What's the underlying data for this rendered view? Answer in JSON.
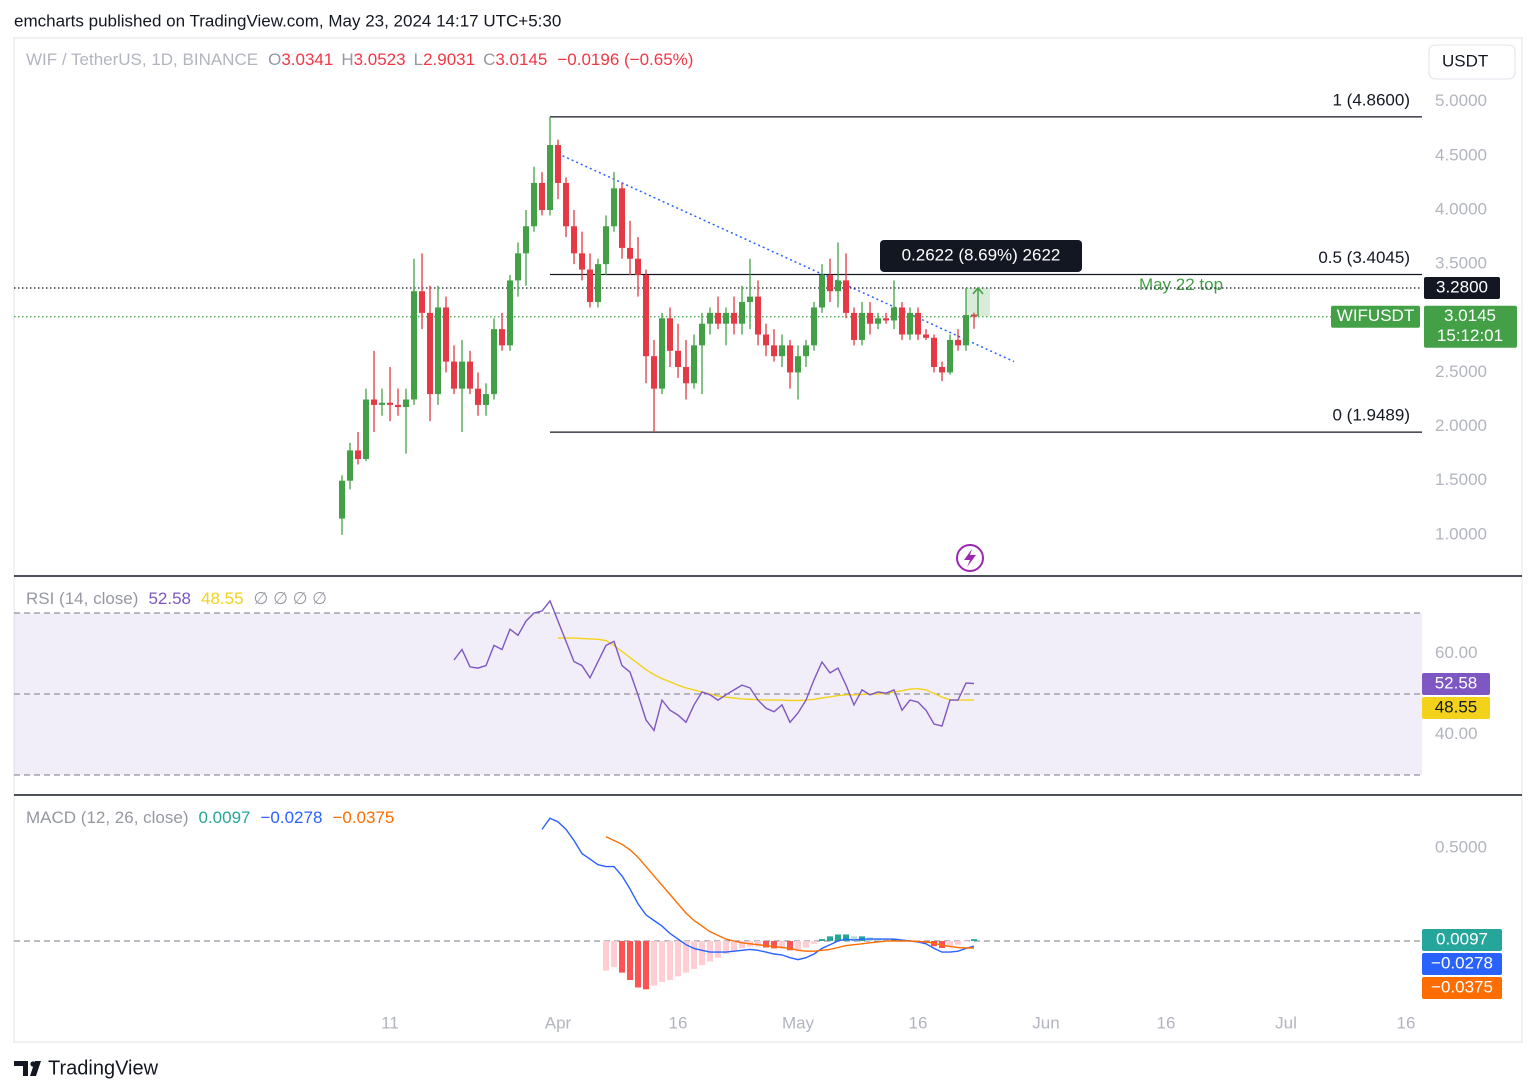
{
  "header": {
    "publisher": "emcharts published on TradingView.com, May 23, 2024 14:17 UTC+5:30"
  },
  "toolbar": {
    "currency": "USDT"
  },
  "footer": {
    "brand": "TradingView"
  },
  "chart_data": [
    {
      "type": "candlestick",
      "title": "WIF / TetherUS, 1D, BINANCE",
      "legend_letters": [
        "O",
        "H",
        "L",
        "C"
      ],
      "change": {
        "value": -0.0196,
        "pct": -0.65,
        "label": "−0.0196 (−0.65%)"
      },
      "up_color": "#43a047",
      "down_color": "#e53945",
      "x": [
        "2024-03-05",
        "2024-03-06",
        "2024-03-07",
        "2024-03-08",
        "2024-03-09",
        "2024-03-10",
        "2024-03-11",
        "2024-03-12",
        "2024-03-13",
        "2024-03-14",
        "2024-03-15",
        "2024-03-16",
        "2024-03-17",
        "2024-03-18",
        "2024-03-19",
        "2024-03-20",
        "2024-03-21",
        "2024-03-22",
        "2024-03-23",
        "2024-03-24",
        "2024-03-25",
        "2024-03-26",
        "2024-03-27",
        "2024-03-28",
        "2024-03-29",
        "2024-03-30",
        "2024-03-31",
        "2024-04-01",
        "2024-04-02",
        "2024-04-03",
        "2024-04-04",
        "2024-04-05",
        "2024-04-06",
        "2024-04-07",
        "2024-04-08",
        "2024-04-09",
        "2024-04-10",
        "2024-04-11",
        "2024-04-12",
        "2024-04-13",
        "2024-04-14",
        "2024-04-15",
        "2024-04-16",
        "2024-04-17",
        "2024-04-18",
        "2024-04-19",
        "2024-04-20",
        "2024-04-21",
        "2024-04-22",
        "2024-04-23",
        "2024-04-24",
        "2024-04-25",
        "2024-04-26",
        "2024-04-27",
        "2024-04-28",
        "2024-04-29",
        "2024-04-30",
        "2024-05-01",
        "2024-05-02",
        "2024-05-03",
        "2024-05-04",
        "2024-05-05",
        "2024-05-06",
        "2024-05-07",
        "2024-05-08",
        "2024-05-09",
        "2024-05-10",
        "2024-05-11",
        "2024-05-12",
        "2024-05-13",
        "2024-05-14",
        "2024-05-15",
        "2024-05-16",
        "2024-05-17",
        "2024-05-18",
        "2024-05-19",
        "2024-05-20",
        "2024-05-21",
        "2024-05-22",
        "2024-05-23"
      ],
      "open": [
        1.15,
        1.5,
        1.78,
        1.7,
        2.25,
        2.2,
        2.22,
        2.2,
        2.18,
        2.25,
        3.25,
        3.05,
        2.3,
        3.1,
        2.6,
        2.35,
        2.6,
        2.35,
        2.2,
        2.3,
        2.9,
        2.75,
        3.35,
        3.6,
        3.85,
        4.25,
        4.0,
        4.6,
        4.25,
        3.85,
        3.6,
        3.45,
        3.15,
        3.5,
        3.85,
        4.2,
        3.65,
        3.55,
        3.4,
        2.65,
        2.35,
        3.0,
        2.7,
        2.55,
        2.4,
        2.75,
        2.95,
        3.05,
        2.95,
        3.05,
        2.95,
        3.15,
        3.2,
        2.85,
        2.75,
        2.65,
        2.75,
        2.5,
        2.65,
        2.75,
        3.1,
        3.4,
        3.25,
        3.35,
        3.05,
        2.8,
        3.05,
        2.95,
        3.0,
        2.98,
        3.1,
        2.85,
        3.05,
        2.85,
        2.82,
        2.55,
        2.5,
        2.8,
        2.75,
        3.0341
      ],
      "high": [
        1.55,
        1.85,
        1.95,
        2.35,
        2.7,
        2.35,
        2.55,
        2.35,
        2.35,
        3.55,
        3.6,
        3.3,
        3.3,
        3.2,
        2.75,
        2.8,
        2.7,
        2.5,
        2.4,
        3.0,
        3.05,
        3.4,
        3.7,
        4.0,
        4.4,
        4.35,
        4.86,
        4.65,
        4.3,
        4.0,
        3.8,
        3.6,
        3.55,
        3.95,
        4.35,
        4.25,
        3.9,
        3.75,
        3.45,
        2.8,
        3.05,
        3.1,
        2.95,
        2.8,
        2.85,
        3.05,
        3.1,
        3.2,
        3.1,
        3.2,
        3.3,
        3.55,
        3.35,
        2.95,
        2.9,
        2.85,
        2.8,
        2.75,
        2.8,
        3.15,
        3.5,
        3.55,
        3.7,
        3.6,
        3.1,
        3.15,
        3.15,
        3.05,
        3.05,
        3.35,
        3.15,
        3.1,
        3.1,
        2.9,
        2.85,
        2.6,
        2.85,
        2.9,
        3.28,
        3.0523
      ],
      "low": [
        1.0,
        1.42,
        1.65,
        1.68,
        1.95,
        2.1,
        2.05,
        2.1,
        1.75,
        2.2,
        2.9,
        2.05,
        2.2,
        2.5,
        2.3,
        1.95,
        2.3,
        2.1,
        2.1,
        2.25,
        2.7,
        2.7,
        3.2,
        3.3,
        3.8,
        3.95,
        3.95,
        4.1,
        3.75,
        3.5,
        3.35,
        3.1,
        3.1,
        3.4,
        3.8,
        3.55,
        3.4,
        3.2,
        2.4,
        1.9489,
        2.3,
        2.55,
        2.45,
        2.25,
        2.35,
        2.3,
        2.85,
        2.9,
        2.75,
        2.85,
        2.85,
        2.9,
        2.75,
        2.65,
        2.6,
        2.55,
        2.35,
        2.25,
        2.55,
        2.7,
        3.05,
        3.15,
        3.1,
        3.0,
        2.75,
        2.75,
        2.85,
        2.9,
        2.95,
        2.9,
        2.8,
        2.8,
        2.8,
        2.8,
        2.5,
        2.42,
        2.48,
        2.7,
        2.7,
        2.9031
      ],
      "close": [
        1.5,
        1.78,
        1.7,
        2.25,
        2.2,
        2.22,
        2.2,
        2.18,
        2.25,
        3.25,
        3.05,
        2.3,
        3.1,
        2.6,
        2.35,
        2.6,
        2.35,
        2.2,
        2.3,
        2.9,
        2.75,
        3.35,
        3.6,
        3.85,
        4.25,
        4.0,
        4.6,
        4.25,
        3.85,
        3.6,
        3.45,
        3.15,
        3.5,
        3.85,
        4.2,
        3.65,
        3.55,
        3.4,
        2.65,
        2.35,
        3.0,
        2.7,
        2.55,
        2.4,
        2.75,
        2.95,
        3.05,
        2.95,
        3.05,
        2.95,
        3.15,
        3.2,
        2.85,
        2.75,
        2.65,
        2.75,
        2.5,
        2.65,
        2.75,
        3.1,
        3.4,
        3.25,
        3.35,
        3.05,
        2.8,
        3.05,
        2.95,
        3.0,
        2.98,
        3.1,
        2.85,
        3.05,
        2.85,
        2.82,
        2.55,
        2.5,
        2.8,
        2.75,
        3.03,
        3.0145
      ],
      "xlim": [
        "2024-01-24",
        "2024-07-18"
      ],
      "xticks": [
        {
          "value": "2024-03-11",
          "label": "11"
        },
        {
          "value": "2024-04-01",
          "label": "Apr"
        },
        {
          "value": "2024-04-16",
          "label": "16"
        },
        {
          "value": "2024-05-01",
          "label": "May"
        },
        {
          "value": "2024-05-16",
          "label": "16"
        },
        {
          "value": "2024-06-01",
          "label": "Jun"
        },
        {
          "value": "2024-06-16",
          "label": "16"
        },
        {
          "value": "2024-07-01",
          "label": "Jul"
        },
        {
          "value": "2024-07-16",
          "label": "16"
        }
      ],
      "ylim": [
        0.62,
        5.57
      ],
      "yticks": [
        {
          "value": 1,
          "label": "1.0000"
        },
        {
          "value": 1.5,
          "label": "1.5000"
        },
        {
          "value": 2,
          "label": "2.0000"
        },
        {
          "value": 2.5,
          "label": "2.5000"
        },
        {
          "value": 3,
          "label": "3.0000"
        },
        {
          "value": 3.5,
          "label": "3.5000"
        },
        {
          "value": 4,
          "label": "4.0000"
        },
        {
          "value": 4.5,
          "label": "4.5000"
        },
        {
          "value": 5,
          "label": "5.0000"
        }
      ],
      "grid": false,
      "fib_start": "2024-03-31",
      "fib_levels": [
        {
          "ratio": 1,
          "price": 4.86,
          "label": "1 (4.8600)"
        },
        {
          "ratio": 0.5,
          "price": 3.4045,
          "label": "0.5 (3.4045)"
        },
        {
          "ratio": 0,
          "price": 1.9489,
          "label": "0 (1.9489)"
        }
      ],
      "trendline": {
        "x": [
          "2024-04-01",
          "2024-05-28"
        ],
        "y": [
          4.52,
          2.6
        ],
        "color": "#2962ff"
      },
      "measure": {
        "x": [
          "2024-05-22",
          "2024-05-25"
        ],
        "y": [
          3.0178,
          3.28
        ],
        "label": "0.2622 (8.69%) 2622",
        "color": "#43a047"
      },
      "annotation": {
        "text": "May 22 top",
        "color": "#43a047"
      },
      "price_lines": [
        {
          "value": 3.28,
          "label": "3.2800",
          "color": "#131722"
        },
        {
          "value": 3.0145,
          "label": "3.0145",
          "symbol": "WIFUSDT",
          "countdown": "15:12:01",
          "color": "#43a047"
        }
      ]
    },
    {
      "type": "line",
      "title": "RSI (14, close)",
      "hidden_values": "∅ ∅ ∅ ∅",
      "series": [
        {
          "color": "#7e57c2",
          "values": [
            null,
            null,
            null,
            null,
            null,
            null,
            null,
            null,
            null,
            null,
            null,
            null,
            null,
            null,
            58.4,
            61,
            56.7,
            56.4,
            57,
            62,
            61,
            66,
            64.5,
            68,
            70,
            70.5,
            73,
            68,
            63,
            58,
            57,
            54,
            58,
            62,
            63,
            57,
            55.4,
            49.8,
            43.6,
            41,
            48.5,
            46,
            44.8,
            43,
            47.3,
            50.5,
            49.8,
            48.5,
            49.8,
            51,
            52.2,
            51.5,
            48.5,
            46.5,
            45.6,
            47.3,
            43,
            45.3,
            48.5,
            53.5,
            57.9,
            55.2,
            56.4,
            52.2,
            47.3,
            51,
            49.8,
            50.5,
            50.2,
            51,
            46,
            48.5,
            48,
            46,
            42.6,
            42.1,
            48.5,
            48.5,
            52.7,
            52.58
          ]
        },
        {
          "color": "#f2d21b",
          "values": [
            null,
            null,
            null,
            null,
            null,
            null,
            null,
            null,
            null,
            null,
            null,
            null,
            null,
            null,
            null,
            null,
            null,
            null,
            null,
            null,
            null,
            null,
            null,
            null,
            null,
            null,
            null,
            63.8,
            63.8,
            63.8,
            63.7,
            63.6,
            63.5,
            63.2,
            62,
            60.5,
            59,
            57.5,
            56,
            54.8,
            53.8,
            53,
            52.2,
            51.5,
            51,
            50.5,
            50,
            49.5,
            49.2,
            49,
            48.8,
            48.7,
            48.6,
            48.5,
            48.5,
            48.5,
            48.4,
            48.4,
            48.5,
            48.7,
            49,
            49.3,
            49.6,
            49.8,
            49.8,
            49.9,
            50,
            50,
            50.2,
            50.5,
            50.8,
            51.2,
            51.3,
            51,
            50.2,
            49.2,
            48.6,
            48.5,
            48.5,
            48.55
          ]
        }
      ],
      "ylim": [
        25.06,
        78.89
      ],
      "yticks": [
        {
          "value": 40,
          "label": "40.00"
        },
        {
          "value": 60,
          "label": "60.00"
        }
      ],
      "levels": [
        70,
        50,
        30
      ],
      "band": [
        30,
        70
      ],
      "band_color": "#7e57c2"
    },
    {
      "type": "macd",
      "title": "MACD (12, 26, close)",
      "histogram": [
        null,
        null,
        null,
        null,
        null,
        null,
        null,
        null,
        null,
        null,
        null,
        null,
        null,
        null,
        null,
        null,
        null,
        null,
        null,
        null,
        null,
        null,
        null,
        null,
        null,
        null,
        null,
        null,
        null,
        null,
        null,
        null,
        null,
        -0.16,
        -0.14,
        -0.17,
        -0.21,
        -0.25,
        -0.26,
        -0.24,
        -0.22,
        -0.21,
        -0.19,
        -0.17,
        -0.15,
        -0.13,
        -0.11,
        -0.09,
        -0.07,
        -0.055,
        -0.04,
        -0.03,
        -0.03,
        -0.035,
        -0.04,
        -0.04,
        -0.05,
        -0.05,
        -0.035,
        -0.015,
        0.01,
        0.025,
        0.035,
        0.035,
        0.025,
        0.025,
        0.02,
        0.015,
        0.01,
        0.01,
        0.005,
        0,
        -0.003,
        -0.01,
        -0.028,
        -0.038,
        -0.03,
        -0.02,
        -0.003,
        0.0097
      ],
      "hist_colors": [
        "#26a69a",
        "#b2dfdb",
        "#ff5252",
        "#ffcdd2"
      ],
      "series": [
        {
          "color": "#2962ff",
          "values": [
            null,
            null,
            null,
            null,
            null,
            null,
            null,
            null,
            null,
            null,
            null,
            null,
            null,
            null,
            null,
            null,
            null,
            null,
            null,
            null,
            null,
            null,
            null,
            null,
            null,
            0.6,
            0.66,
            0.64,
            0.6,
            0.54,
            0.47,
            0.44,
            0.41,
            0.4,
            0.4,
            0.35,
            0.28,
            0.2,
            0.14,
            0.11,
            0.08,
            0.04,
            0.01,
            -0.02,
            -0.04,
            -0.05,
            -0.06,
            -0.06,
            -0.06,
            -0.055,
            -0.05,
            -0.045,
            -0.05,
            -0.06,
            -0.07,
            -0.075,
            -0.09,
            -0.1,
            -0.09,
            -0.07,
            -0.04,
            -0.02,
            0,
            0.01,
            0.005,
            0.01,
            0.01,
            0.01,
            0.01,
            0.01,
            0.005,
            0,
            -0.005,
            -0.015,
            -0.04,
            -0.06,
            -0.06,
            -0.055,
            -0.04,
            -0.0278
          ]
        },
        {
          "color": "#ff6d00",
          "values": [
            null,
            null,
            null,
            null,
            null,
            null,
            null,
            null,
            null,
            null,
            null,
            null,
            null,
            null,
            null,
            null,
            null,
            null,
            null,
            null,
            null,
            null,
            null,
            null,
            null,
            null,
            null,
            null,
            null,
            null,
            null,
            null,
            null,
            0.56,
            0.54,
            0.52,
            0.49,
            0.45,
            0.4,
            0.35,
            0.3,
            0.25,
            0.2,
            0.15,
            0.11,
            0.08,
            0.05,
            0.03,
            0.01,
            0,
            -0.01,
            -0.015,
            -0.02,
            -0.025,
            -0.03,
            -0.035,
            -0.04,
            -0.05,
            -0.055,
            -0.055,
            -0.05,
            -0.045,
            -0.035,
            -0.025,
            -0.02,
            -0.015,
            -0.01,
            -0.005,
            0,
            0,
            0,
            0,
            -0.002,
            -0.005,
            -0.012,
            -0.022,
            -0.03,
            -0.035,
            -0.037,
            -0.0375
          ]
        }
      ],
      "legend_labels": [
        "0.0097",
        "−0.0278",
        "−0.0375"
      ],
      "ylim": [
        -0.371,
        0.774
      ],
      "yticks": [
        {
          "value": 0.5,
          "label": "0.5000"
        }
      ],
      "levels": [
        0
      ]
    }
  ]
}
